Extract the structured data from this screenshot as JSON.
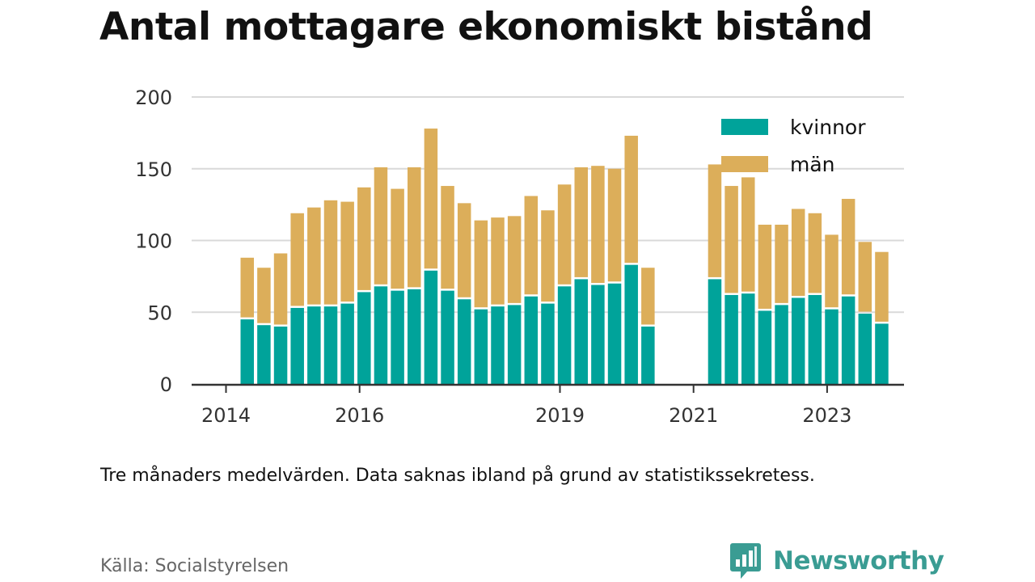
{
  "title": "Antal mottagare ekonomiskt bistånd",
  "note": "Tre månaders medelvärden. Data saknas ibland på grund av statistikssekretess.",
  "source": "Källa: Socialstyrelsen",
  "brand": {
    "name": "Newsworthy",
    "logo_icon": "bar-chart-speech-bubble-icon",
    "color": "#3a9c93"
  },
  "chart_data": {
    "type": "bar",
    "stacked": true,
    "x_ticks": [
      "2014",
      "2016",
      "2019",
      "2021",
      "2023"
    ],
    "y_ticks": [
      0,
      50,
      100,
      150,
      200
    ],
    "ylim": [
      0,
      200
    ],
    "grid": true,
    "legend_position": "top-right",
    "colors": {
      "kvinnor": "#00a39a",
      "män": "#dcae5a",
      "grid": "#d9d9d9",
      "axis": "#333333"
    },
    "series": [
      {
        "name": "kvinnor",
        "values": [
          45,
          41,
          40,
          53,
          54,
          54,
          56,
          64,
          68,
          65,
          66,
          79,
          65,
          59,
          52,
          54,
          55,
          61,
          56,
          68,
          73,
          69,
          70,
          83,
          40,
          null,
          null,
          null,
          73,
          62,
          63,
          51,
          55,
          60,
          62,
          52,
          61,
          49,
          42
        ]
      },
      {
        "name": "män",
        "values": [
          43,
          40,
          51,
          66,
          69,
          74,
          71,
          73,
          83,
          71,
          85,
          99,
          73,
          67,
          62,
          62,
          62,
          70,
          65,
          71,
          78,
          83,
          80,
          90,
          41,
          null,
          null,
          null,
          80,
          76,
          81,
          60,
          56,
          62,
          57,
          52,
          68,
          50,
          50
        ]
      }
    ]
  }
}
